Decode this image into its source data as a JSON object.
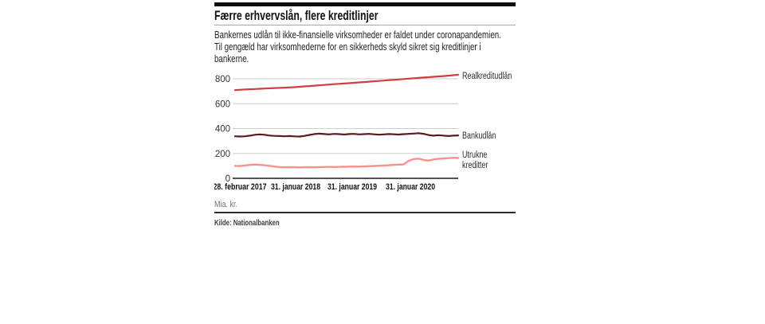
{
  "header": {
    "title": "Færre erhvervslån, flere kreditlinjer",
    "subtitle_lines": [
      "Bankernes udlån til ikke-finansielle virksomheder er faldet under coronapandemien.",
      "Til gengæld har virksomhederne for en sikkerheds skyld sikret sig kreditlinjer i",
      "bankerne."
    ]
  },
  "footer": {
    "unit_label": "Mia. kr.",
    "source": "Kilde: Nationalbanken"
  },
  "colors": {
    "top_bar": "#0d0d0d",
    "axis": "#1a1a1a",
    "grid": "#cdcdcd",
    "realkreditudlan_line": "#ce3e42",
    "bankudlan_line": "#5a1a1e",
    "utrukne_kreditter_line": "#f9928e"
  },
  "chart_data": {
    "type": "line",
    "title": "Færre erhvervslån, flere kreditlinjer",
    "ylabel": "Mia. kr.",
    "ylim": [
      0,
      870
    ],
    "yticks": [
      0,
      200,
      400,
      600,
      800
    ],
    "grid": "horizontal",
    "x_unit": "months from 28. februar 2017",
    "x_range_months": 45,
    "x_tick_labels": [
      "28. februar 2017",
      "31. januar 2018",
      "31. januar 2019",
      "31. januar 2020"
    ],
    "x_tick_month_index": [
      0,
      11,
      23,
      35
    ],
    "axis_color": "#1a1a1a",
    "grid_color": "#cdcdcd",
    "legend_position": "right-of-line-ends",
    "series": [
      {
        "name": "Realkreditudlån",
        "slug": "realkreditudlan",
        "color": "#ce3e42",
        "width": 2.2,
        "values": [
          710,
          712,
          714,
          716,
          718,
          720,
          722,
          724,
          726,
          727,
          729,
          731,
          733,
          736,
          739,
          742,
          745,
          748,
          751,
          754,
          757,
          760,
          762,
          765,
          768,
          771,
          774,
          777,
          780,
          783,
          786,
          789,
          792,
          795,
          798,
          801,
          804,
          807,
          810,
          813,
          816,
          819,
          822,
          825,
          829,
          833
        ]
      },
      {
        "name": "Bankudlån",
        "slug": "bankudlan",
        "color": "#5a1a1e",
        "width": 2.2,
        "values": [
          338,
          336,
          338,
          343,
          350,
          353,
          350,
          344,
          341,
          340,
          338,
          340,
          337,
          336,
          341,
          349,
          356,
          359,
          356,
          353,
          357,
          355,
          352,
          356,
          357,
          353,
          355,
          357,
          354,
          351,
          353,
          356,
          354,
          352,
          355,
          357,
          360,
          363,
          358,
          348,
          343,
          347,
          344,
          340,
          343,
          345
        ]
      },
      {
        "name": "Utrukne kreditter",
        "slug": "utrukne-kreditter",
        "color": "#f9928e",
        "width": 2.4,
        "values": [
          100,
          99,
          103,
          108,
          110,
          108,
          105,
          100,
          95,
          90,
          89,
          90,
          89,
          88,
          89,
          90,
          89,
          90,
          91,
          92,
          91,
          92,
          93,
          94,
          95,
          94,
          96,
          97,
          99,
          101,
          103,
          105,
          108,
          110,
          112,
          140,
          155,
          158,
          148,
          143,
          152,
          157,
          160,
          162,
          165,
          163
        ]
      }
    ]
  }
}
